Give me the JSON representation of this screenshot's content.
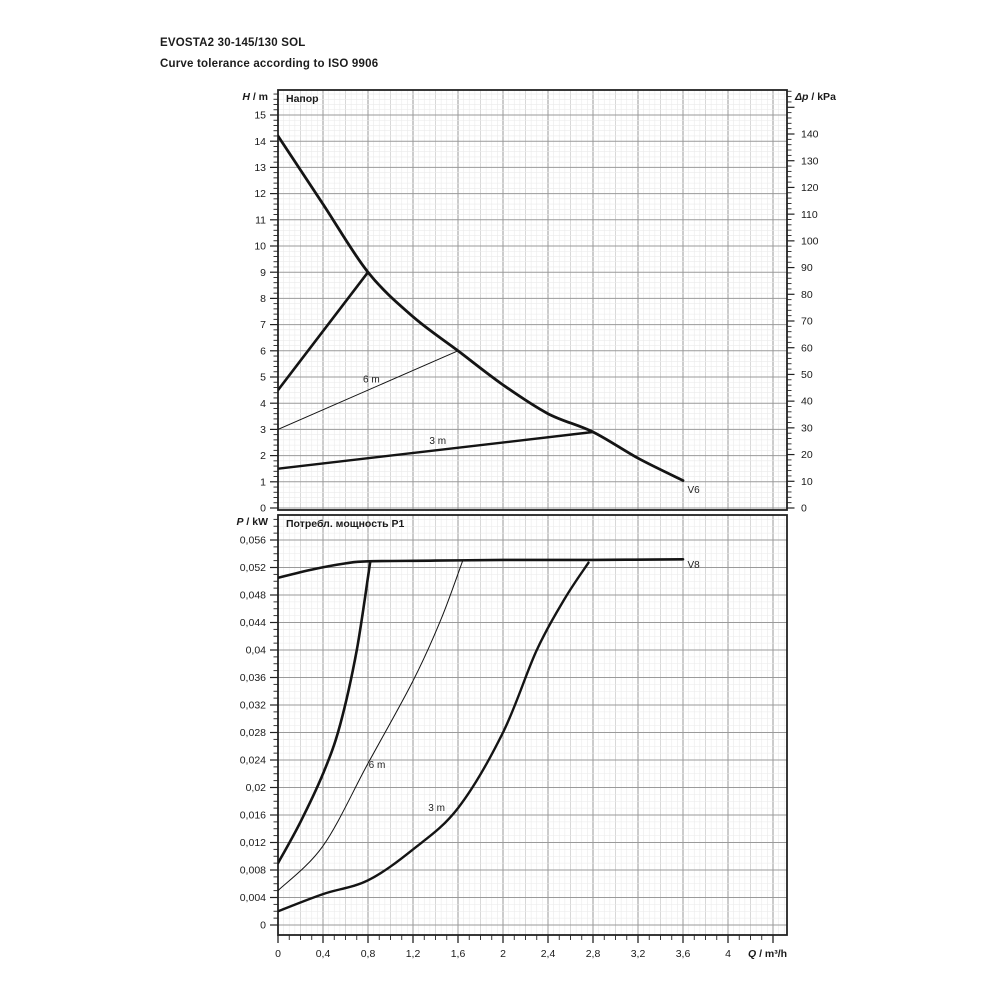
{
  "header": {
    "title": "EVOSTA2 30-145/130 SOL",
    "subtitle": "Curve tolerance according to ISO 9906"
  },
  "chart_data": [
    {
      "type": "line",
      "id": "head",
      "panel_title": "Напор",
      "xlim": [
        0,
        4.52
      ],
      "ylim": [
        0,
        15.95
      ],
      "ylim_right": [
        0,
        156
      ],
      "grid": "on",
      "y_axis_left": {
        "variable": "H",
        "rest": " / m",
        "ticks": [
          [
            0,
            "0"
          ],
          [
            1,
            "1"
          ],
          [
            2,
            "2"
          ],
          [
            3,
            "3"
          ],
          [
            4,
            "4"
          ],
          [
            5,
            "5"
          ],
          [
            6,
            "6"
          ],
          [
            7,
            "7"
          ],
          [
            8,
            "8"
          ],
          [
            9,
            "9"
          ],
          [
            10,
            "10"
          ],
          [
            11,
            "11"
          ],
          [
            12,
            "12"
          ],
          [
            13,
            "13"
          ],
          [
            14,
            "14"
          ],
          [
            15,
            "15"
          ]
        ]
      },
      "y_axis_right": {
        "variable": "Δp",
        "rest": " / kPa",
        "ticks": [
          [
            0,
            "0"
          ],
          [
            10,
            "10"
          ],
          [
            20,
            "20"
          ],
          [
            30,
            "30"
          ],
          [
            40,
            "40"
          ],
          [
            50,
            "50"
          ],
          [
            60,
            "60"
          ],
          [
            70,
            "70"
          ],
          [
            80,
            "80"
          ],
          [
            90,
            "90"
          ],
          [
            100,
            "100"
          ],
          [
            110,
            "110"
          ],
          [
            120,
            "120"
          ],
          [
            130,
            "130"
          ],
          [
            140,
            "140"
          ]
        ]
      },
      "series": [
        {
          "name": "v6-max-speed-curve",
          "label": "V6",
          "width": 2.8,
          "smooth": true,
          "points": [
            [
              0,
              14.2
            ],
            [
              0.4,
              11.6
            ],
            [
              0.8,
              9.0
            ],
            [
              1.2,
              7.3
            ],
            [
              1.6,
              6.0
            ],
            [
              2.0,
              4.7
            ],
            [
              2.4,
              3.6
            ],
            [
              2.8,
              2.9
            ],
            [
              3.2,
              1.9
            ],
            [
              3.6,
              1.05
            ]
          ]
        },
        {
          "name": "proportional-pressure-max",
          "label": "",
          "width": 2.6,
          "smooth": false,
          "points": [
            [
              0,
              4.5
            ],
            [
              0.8,
              9.0
            ]
          ]
        },
        {
          "name": "proportional-pressure-6m",
          "label": "6 m",
          "width": 1,
          "smooth": false,
          "points": [
            [
              0,
              3.0
            ],
            [
              1.6,
              6.0
            ]
          ]
        },
        {
          "name": "proportional-pressure-3m",
          "label": "3 m",
          "width": 2.4,
          "smooth": false,
          "points": [
            [
              0,
              1.5
            ],
            [
              2.8,
              2.9
            ]
          ]
        }
      ],
      "annotations": [
        {
          "text": "6 m",
          "x": 0.83,
          "y": 4.9,
          "anchor": "middle"
        },
        {
          "text": "3 m",
          "x": 1.42,
          "y": 2.55,
          "anchor": "middle"
        },
        {
          "text": "V6",
          "x": 3.64,
          "y": 0.69,
          "anchor": "start"
        }
      ]
    },
    {
      "type": "line",
      "id": "power",
      "panel_title": "Потребл. мощность P1",
      "xlim": [
        0,
        4.52
      ],
      "ylim": [
        0,
        0.0596
      ],
      "grid": "on",
      "y_axis_left": {
        "variable": "P",
        "rest": " / kW",
        "ticks": [
          [
            0,
            "0"
          ],
          [
            0.004,
            "0,004"
          ],
          [
            0.008,
            "0,008"
          ],
          [
            0.012,
            "0,012"
          ],
          [
            0.016,
            "0,016"
          ],
          [
            0.02,
            "0,02"
          ],
          [
            0.024,
            "0,024"
          ],
          [
            0.028,
            "0,028"
          ],
          [
            0.032,
            "0,032"
          ],
          [
            0.036,
            "0,036"
          ],
          [
            0.04,
            "0,04"
          ],
          [
            0.044,
            "0,044"
          ],
          [
            0.048,
            "0,048"
          ],
          [
            0.052,
            "0,052"
          ],
          [
            0.056,
            "0,056"
          ]
        ]
      },
      "x_axis": {
        "variable": "Q",
        "rest": " / m³/h",
        "ticks": [
          [
            0,
            "0"
          ],
          [
            0.4,
            "0,4"
          ],
          [
            0.8,
            "0,8"
          ],
          [
            1.2,
            "1,2"
          ],
          [
            1.6,
            "1,6"
          ],
          [
            2,
            "2"
          ],
          [
            2.4,
            "2,4"
          ],
          [
            2.8,
            "2,8"
          ],
          [
            3.2,
            "3,2"
          ],
          [
            3.6,
            "3,6"
          ],
          [
            4,
            "4"
          ]
        ]
      },
      "series": [
        {
          "name": "v8-max-power-curve",
          "label": "V8",
          "width": 2.6,
          "smooth": true,
          "points": [
            [
              0,
              0.0505
            ],
            [
              0.3,
              0.0517
            ],
            [
              0.6,
              0.0526
            ],
            [
              0.8,
              0.0529
            ],
            [
              1.4,
              0.053
            ],
            [
              2.0,
              0.0531
            ],
            [
              2.8,
              0.0531
            ],
            [
              3.6,
              0.0532
            ]
          ]
        },
        {
          "name": "power-proportional-max",
          "label": "",
          "width": 2.6,
          "smooth": true,
          "points": [
            [
              0,
              0.009
            ],
            [
              0.2,
              0.015
            ],
            [
              0.4,
              0.022
            ],
            [
              0.55,
              0.029
            ],
            [
              0.7,
              0.04
            ],
            [
              0.82,
              0.0529
            ]
          ]
        },
        {
          "name": "power-6m",
          "label": "6 m",
          "width": 1,
          "smooth": true,
          "points": [
            [
              0,
              0.005
            ],
            [
              0.4,
              0.0115
            ],
            [
              0.8,
              0.0235
            ],
            [
              1.2,
              0.0355
            ],
            [
              1.45,
              0.0445
            ],
            [
              1.64,
              0.0529
            ]
          ]
        },
        {
          "name": "power-3m",
          "label": "3 m",
          "width": 2.4,
          "smooth": true,
          "points": [
            [
              0,
              0.002
            ],
            [
              0.4,
              0.0045
            ],
            [
              0.8,
              0.0065
            ],
            [
              1.2,
              0.011
            ],
            [
              1.6,
              0.017
            ],
            [
              2.0,
              0.028
            ],
            [
              2.3,
              0.04
            ],
            [
              2.55,
              0.0475
            ],
            [
              2.76,
              0.0527
            ]
          ]
        }
      ],
      "annotations": [
        {
          "text": "6 m",
          "x": 0.88,
          "y": 0.0233,
          "anchor": "middle"
        },
        {
          "text": "3 m",
          "x": 1.41,
          "y": 0.017,
          "anchor": "middle"
        },
        {
          "text": "V8",
          "x": 3.64,
          "y": 0.0524,
          "anchor": "start"
        }
      ]
    }
  ]
}
